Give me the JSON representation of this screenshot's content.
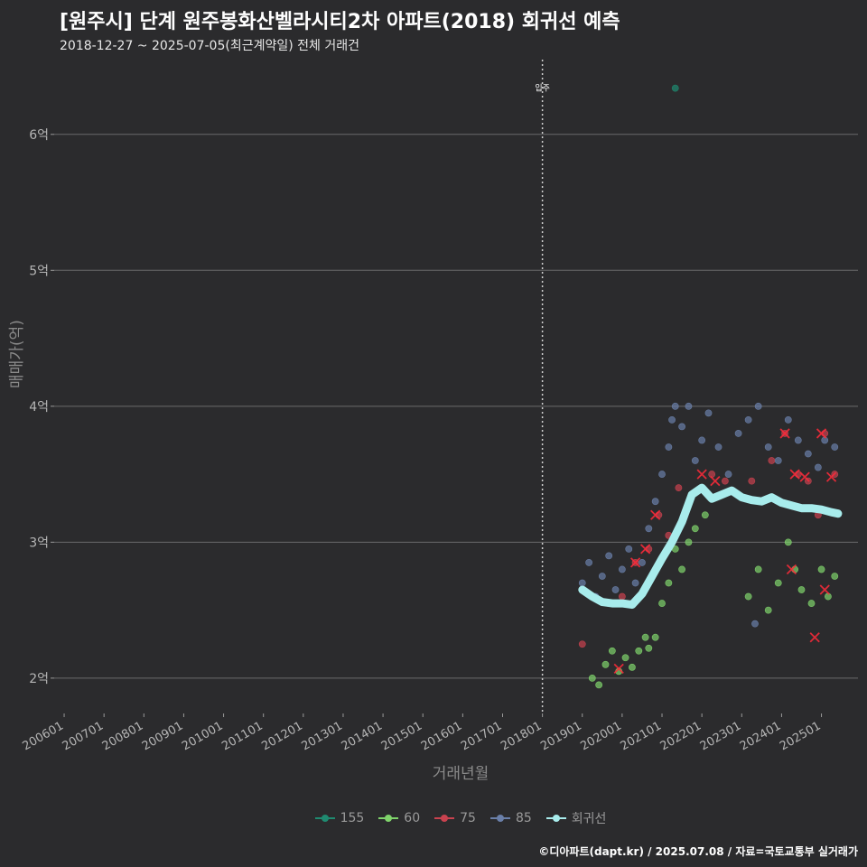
{
  "title": "[원주시] 단계 원주봉화산벨라시티2차 아파트(2018) 회귀선 예측",
  "subtitle": "2018-12-27 ~ 2025-07-05(최근계약일) 전체 거래건",
  "caption": "©디아파트(dapt.kr) / 2025.07.08 / 자료=국토교통부 실거래가",
  "colors": {
    "background": "#2b2b2d",
    "grid": "#6b6b6b",
    "s155": "#1f8a70",
    "s60": "#7fd36b",
    "s75": "#c9424f",
    "s85": "#6a7fa8",
    "regression": "#a8ecec",
    "marker_x": "#ff2a3a"
  },
  "chart_data": {
    "type": "scatter",
    "xlabel": "거래년월",
    "ylabel": "매매가(억)",
    "x_range": [
      "2005-10",
      "2025-12"
    ],
    "ylim": [
      1.74,
      6.55
    ],
    "y_ticks": [
      2,
      3,
      4,
      5,
      6
    ],
    "y_tick_labels": [
      "2억",
      "3억",
      "4억",
      "5억",
      "6억"
    ],
    "x_tick_labels": [
      "200601",
      "200701",
      "200801",
      "200901",
      "201001",
      "201101",
      "201201",
      "201301",
      "201401",
      "201501",
      "201601",
      "201701",
      "201801",
      "201901",
      "202001",
      "202101",
      "202201",
      "202301",
      "202401",
      "202501"
    ],
    "grid": "horizontal",
    "legend_position": "bottom",
    "vline": {
      "x": "2018-01",
      "label": "입주"
    },
    "series": [
      {
        "name": "155",
        "color": "#1f8a70",
        "points": [
          [
            "2021-05",
            6.34
          ]
        ]
      },
      {
        "name": "60",
        "color": "#7fd36b",
        "points": [
          [
            "2019-04",
            2.0
          ],
          [
            "2019-06",
            1.95
          ],
          [
            "2019-08",
            2.1
          ],
          [
            "2019-10",
            2.2
          ],
          [
            "2019-12",
            2.05
          ],
          [
            "2020-02",
            2.15
          ],
          [
            "2020-04",
            2.08
          ],
          [
            "2020-06",
            2.2
          ],
          [
            "2020-08",
            2.3
          ],
          [
            "2020-09",
            2.22
          ],
          [
            "2020-11",
            2.3
          ],
          [
            "2021-01",
            2.55
          ],
          [
            "2021-03",
            2.7
          ],
          [
            "2021-05",
            2.95
          ],
          [
            "2021-07",
            2.8
          ],
          [
            "2021-09",
            3.0
          ],
          [
            "2021-11",
            3.1
          ],
          [
            "2022-02",
            3.2
          ],
          [
            "2023-03",
            2.6
          ],
          [
            "2023-06",
            2.8
          ],
          [
            "2023-09",
            2.5
          ],
          [
            "2023-12",
            2.7
          ],
          [
            "2024-03",
            3.0
          ],
          [
            "2024-05",
            2.8
          ],
          [
            "2024-07",
            2.65
          ],
          [
            "2024-10",
            2.55
          ],
          [
            "2025-01",
            2.8
          ],
          [
            "2025-03",
            2.6
          ],
          [
            "2025-05",
            2.75
          ]
        ]
      },
      {
        "name": "75",
        "color": "#c9424f",
        "points": [
          [
            "2019-01",
            2.25
          ],
          [
            "2019-09",
            2.55
          ],
          [
            "2020-01",
            2.6
          ],
          [
            "2020-05",
            2.85
          ],
          [
            "2020-09",
            2.95
          ],
          [
            "2020-12",
            3.2
          ],
          [
            "2021-03",
            3.05
          ],
          [
            "2021-06",
            3.4
          ],
          [
            "2021-10",
            3.35
          ],
          [
            "2022-04",
            3.5
          ],
          [
            "2022-08",
            3.45
          ],
          [
            "2023-04",
            3.45
          ],
          [
            "2023-10",
            3.6
          ],
          [
            "2024-02",
            3.8
          ],
          [
            "2024-06",
            3.5
          ],
          [
            "2024-09",
            3.45
          ],
          [
            "2024-12",
            3.2
          ],
          [
            "2025-02",
            3.8
          ],
          [
            "2025-05",
            3.5
          ]
        ]
      },
      {
        "name": "85",
        "color": "#6a7fa8",
        "points": [
          [
            "2019-01",
            2.7
          ],
          [
            "2019-03",
            2.85
          ],
          [
            "2019-05",
            2.6
          ],
          [
            "2019-07",
            2.75
          ],
          [
            "2019-09",
            2.9
          ],
          [
            "2019-11",
            2.65
          ],
          [
            "2020-01",
            2.8
          ],
          [
            "2020-03",
            2.95
          ],
          [
            "2020-05",
            2.7
          ],
          [
            "2020-07",
            2.85
          ],
          [
            "2020-09",
            3.1
          ],
          [
            "2020-11",
            3.3
          ],
          [
            "2021-01",
            3.5
          ],
          [
            "2021-03",
            3.7
          ],
          [
            "2021-04",
            3.9
          ],
          [
            "2021-05",
            4.0
          ],
          [
            "2021-07",
            3.85
          ],
          [
            "2021-09",
            4.0
          ],
          [
            "2021-11",
            3.6
          ],
          [
            "2022-01",
            3.75
          ],
          [
            "2022-03",
            3.95
          ],
          [
            "2022-06",
            3.7
          ],
          [
            "2022-09",
            3.5
          ],
          [
            "2022-12",
            3.8
          ],
          [
            "2023-03",
            3.9
          ],
          [
            "2023-06",
            4.0
          ],
          [
            "2023-09",
            3.7
          ],
          [
            "2023-12",
            3.6
          ],
          [
            "2024-03",
            3.9
          ],
          [
            "2024-06",
            3.75
          ],
          [
            "2024-09",
            3.65
          ],
          [
            "2024-12",
            3.55
          ],
          [
            "2025-02",
            3.75
          ],
          [
            "2025-05",
            3.7
          ],
          [
            "2023-05",
            2.4
          ]
        ]
      }
    ],
    "regression": {
      "name": "회귀선",
      "color": "#a8ecec",
      "points": [
        [
          "2019-01",
          2.65
        ],
        [
          "2019-04",
          2.6
        ],
        [
          "2019-07",
          2.56
        ],
        [
          "2019-10",
          2.55
        ],
        [
          "2020-01",
          2.55
        ],
        [
          "2020-04",
          2.54
        ],
        [
          "2020-07",
          2.62
        ],
        [
          "2020-10",
          2.75
        ],
        [
          "2021-01",
          2.88
        ],
        [
          "2021-04",
          3.0
        ],
        [
          "2021-07",
          3.15
        ],
        [
          "2021-10",
          3.35
        ],
        [
          "2022-01",
          3.4
        ],
        [
          "2022-04",
          3.32
        ],
        [
          "2022-07",
          3.35
        ],
        [
          "2022-10",
          3.38
        ],
        [
          "2023-01",
          3.33
        ],
        [
          "2023-04",
          3.31
        ],
        [
          "2023-07",
          3.3
        ],
        [
          "2023-10",
          3.33
        ],
        [
          "2024-01",
          3.29
        ],
        [
          "2024-04",
          3.27
        ],
        [
          "2024-07",
          3.25
        ],
        [
          "2024-10",
          3.25
        ],
        [
          "2025-01",
          3.24
        ],
        [
          "2025-04",
          3.22
        ],
        [
          "2025-06",
          3.21
        ]
      ]
    },
    "highlighted_x_markers": [
      [
        "2020-05",
        2.85
      ],
      [
        "2020-11",
        3.2
      ],
      [
        "2022-01",
        3.5
      ],
      [
        "2022-05",
        3.45
      ],
      [
        "2024-02",
        3.8
      ],
      [
        "2024-05",
        3.5
      ],
      [
        "2024-08",
        3.48
      ],
      [
        "2025-01",
        3.8
      ],
      [
        "2025-04",
        3.48
      ],
      [
        "2024-04",
        2.8
      ],
      [
        "2025-02",
        2.65
      ],
      [
        "2024-11",
        2.3
      ],
      [
        "2020-08",
        2.95
      ],
      [
        "2019-12",
        2.07
      ]
    ]
  },
  "legend": [
    {
      "label": "155",
      "color": "#1f8a70"
    },
    {
      "label": "60",
      "color": "#7fd36b"
    },
    {
      "label": "75",
      "color": "#c9424f"
    },
    {
      "label": "85",
      "color": "#6a7fa8"
    },
    {
      "label": "회귀선",
      "color": "#a8ecec"
    }
  ]
}
